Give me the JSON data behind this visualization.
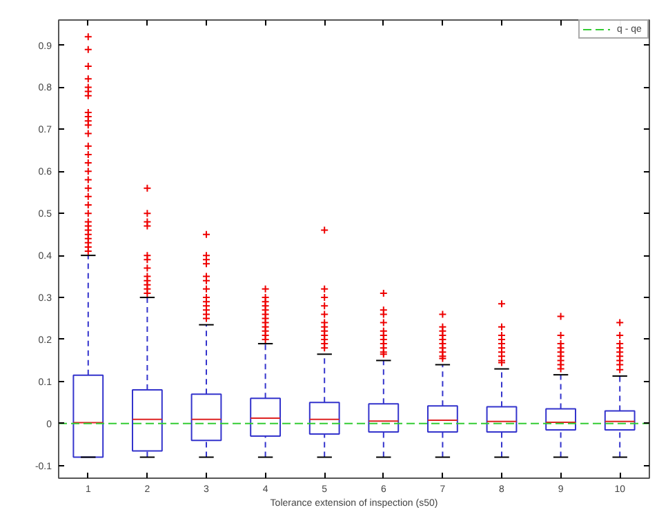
{
  "chart_data": {
    "type": "box",
    "xlabel": "Tolerance extension of inspection (s50)",
    "categories": [
      "1",
      "2",
      "3",
      "4",
      "5",
      "6",
      "7",
      "8",
      "9",
      "10"
    ],
    "ylim": [
      -0.13,
      0.96
    ],
    "yticks": [
      -0.1,
      0,
      0.1,
      0.2,
      0.3,
      0.4,
      0.5,
      0.6,
      0.7,
      0.8,
      0.9
    ],
    "boxes": [
      {
        "low": -0.08,
        "q1": -0.08,
        "median": 0.002,
        "q3": 0.115,
        "high": 0.4,
        "outliers": [
          0.41,
          0.42,
          0.43,
          0.44,
          0.45,
          0.46,
          0.47,
          0.48,
          0.5,
          0.52,
          0.54,
          0.56,
          0.58,
          0.6,
          0.62,
          0.64,
          0.66,
          0.69,
          0.71,
          0.72,
          0.73,
          0.74,
          0.78,
          0.79,
          0.8,
          0.82,
          0.85,
          0.89,
          0.92
        ]
      },
      {
        "low": -0.08,
        "q1": -0.065,
        "median": 0.01,
        "q3": 0.08,
        "high": 0.3,
        "outliers": [
          0.31,
          0.32,
          0.33,
          0.34,
          0.35,
          0.37,
          0.39,
          0.4,
          0.47,
          0.48,
          0.5,
          0.56
        ]
      },
      {
        "low": -0.08,
        "q1": -0.04,
        "median": 0.01,
        "q3": 0.07,
        "high": 0.235,
        "outliers": [
          0.25,
          0.26,
          0.27,
          0.28,
          0.29,
          0.3,
          0.32,
          0.34,
          0.35,
          0.38,
          0.39,
          0.4,
          0.45
        ]
      },
      {
        "low": -0.08,
        "q1": -0.03,
        "median": 0.013,
        "q3": 0.06,
        "high": 0.19,
        "outliers": [
          0.2,
          0.21,
          0.22,
          0.23,
          0.24,
          0.25,
          0.26,
          0.27,
          0.28,
          0.29,
          0.3,
          0.32
        ]
      },
      {
        "low": -0.08,
        "q1": -0.025,
        "median": 0.01,
        "q3": 0.05,
        "high": 0.165,
        "outliers": [
          0.18,
          0.19,
          0.2,
          0.21,
          0.22,
          0.23,
          0.24,
          0.26,
          0.28,
          0.3,
          0.32,
          0.46
        ]
      },
      {
        "low": -0.08,
        "q1": -0.02,
        "median": 0.006,
        "q3": 0.047,
        "high": 0.15,
        "outliers": [
          0.165,
          0.17,
          0.18,
          0.19,
          0.2,
          0.21,
          0.22,
          0.24,
          0.26,
          0.27,
          0.31
        ]
      },
      {
        "low": -0.08,
        "q1": -0.02,
        "median": 0.008,
        "q3": 0.042,
        "high": 0.14,
        "outliers": [
          0.155,
          0.16,
          0.17,
          0.18,
          0.19,
          0.2,
          0.21,
          0.22,
          0.23,
          0.26
        ]
      },
      {
        "low": -0.08,
        "q1": -0.02,
        "median": 0.005,
        "q3": 0.04,
        "high": 0.13,
        "outliers": [
          0.145,
          0.15,
          0.16,
          0.17,
          0.18,
          0.19,
          0.2,
          0.21,
          0.23,
          0.285
        ]
      },
      {
        "low": -0.08,
        "q1": -0.015,
        "median": 0.003,
        "q3": 0.035,
        "high": 0.116,
        "outliers": [
          0.13,
          0.14,
          0.15,
          0.16,
          0.17,
          0.18,
          0.19,
          0.21,
          0.255
        ]
      },
      {
        "low": -0.08,
        "q1": -0.015,
        "median": 0.005,
        "q3": 0.03,
        "high": 0.113,
        "outliers": [
          0.128,
          0.14,
          0.15,
          0.16,
          0.17,
          0.18,
          0.19,
          0.21,
          0.24
        ]
      }
    ],
    "ref_lines": [
      {
        "axis": "y",
        "value": 0,
        "label": "q - qe",
        "color": "#33cc33",
        "line_style": "dashed"
      }
    ],
    "legend": "top right",
    "grid": false
  }
}
